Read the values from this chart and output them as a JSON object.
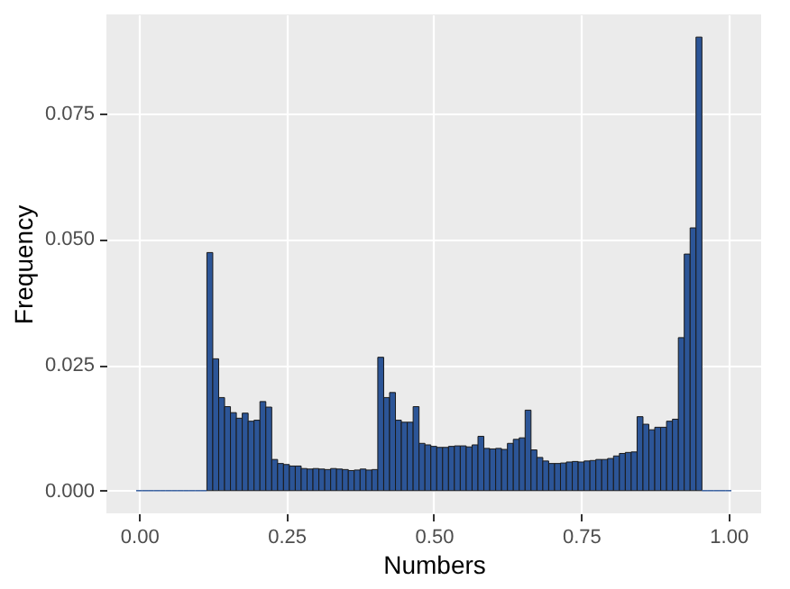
{
  "chart_data": {
    "type": "histogram",
    "xlabel": "Numbers",
    "ylabel": "Frequency",
    "color": "#2c5597",
    "bins": [
      -0.005,
      0.005,
      0.015,
      0.025,
      0.035,
      0.045,
      0.055,
      0.065,
      0.075,
      0.085,
      0.095,
      0.105,
      0.115,
      0.125,
      0.135,
      0.145,
      0.155,
      0.165,
      0.175,
      0.185,
      0.195,
      0.205,
      0.215,
      0.225,
      0.235,
      0.245,
      0.255,
      0.265,
      0.275,
      0.285,
      0.295,
      0.305,
      0.315,
      0.325,
      0.335,
      0.345,
      0.355,
      0.365,
      0.375,
      0.385,
      0.395,
      0.405,
      0.415,
      0.425,
      0.435,
      0.445,
      0.455,
      0.465,
      0.475,
      0.485,
      0.495,
      0.505,
      0.515,
      0.525,
      0.535,
      0.545,
      0.555,
      0.565,
      0.575,
      0.585,
      0.595,
      0.605,
      0.615,
      0.625,
      0.635,
      0.645,
      0.655,
      0.665,
      0.675,
      0.685,
      0.695,
      0.705,
      0.715,
      0.725,
      0.735,
      0.745,
      0.755,
      0.765,
      0.775,
      0.785,
      0.795,
      0.805,
      0.815,
      0.825,
      0.835,
      0.845,
      0.855,
      0.865,
      0.875,
      0.885,
      0.895,
      0.905,
      0.915,
      0.925,
      0.935,
      0.945,
      0.955,
      0.965,
      0.975,
      0.985,
      0.995,
      1.005
    ],
    "values": [
      0,
      0,
      0,
      0,
      0,
      0,
      0,
      0,
      0,
      0,
      0,
      0,
      0.0473,
      0.0262,
      0.0185,
      0.0167,
      0.0155,
      0.0144,
      0.0154,
      0.0138,
      0.014,
      0.0177,
      0.0166,
      0.0062,
      0.0054,
      0.0052,
      0.0049,
      0.0049,
      0.0044,
      0.0043,
      0.0044,
      0.0043,
      0.0042,
      0.0044,
      0.0043,
      0.0042,
      0.004,
      0.0041,
      0.0043,
      0.0041,
      0.0042,
      0.0265,
      0.0185,
      0.0195,
      0.014,
      0.0136,
      0.0136,
      0.0167,
      0.0094,
      0.0091,
      0.0088,
      0.0086,
      0.0086,
      0.0088,
      0.0089,
      0.0089,
      0.0087,
      0.0091,
      0.0108,
      0.0084,
      0.0083,
      0.0084,
      0.0082,
      0.0094,
      0.0102,
      0.0105,
      0.016,
      0.0081,
      0.0066,
      0.0059,
      0.0054,
      0.0054,
      0.0055,
      0.0057,
      0.0058,
      0.0057,
      0.0059,
      0.006,
      0.0062,
      0.0062,
      0.0064,
      0.0069,
      0.0074,
      0.0076,
      0.0077,
      0.0147,
      0.0132,
      0.0121,
      0.0126,
      0.0126,
      0.0138,
      0.0142,
      0.0304,
      0.047,
      0.0522,
      0.0901,
      0,
      0,
      0,
      0,
      0
    ],
    "xlim": [
      -0.0555,
      1.0555
    ],
    "ylim": [
      -0.0045,
      0.0946
    ],
    "xticks": [
      {
        "value": 0,
        "label": "0.00"
      },
      {
        "value": 0.25,
        "label": "0.25"
      },
      {
        "value": 0.5,
        "label": "0.50"
      },
      {
        "value": 0.75,
        "label": "0.75"
      },
      {
        "value": 1,
        "label": "1.00"
      }
    ],
    "yticks": [
      {
        "value": 0,
        "label": "0.000"
      },
      {
        "value": 0.025,
        "label": "0.025"
      },
      {
        "value": 0.05,
        "label": "0.050"
      },
      {
        "value": 0.075,
        "label": "0.075"
      }
    ],
    "grid": true
  }
}
